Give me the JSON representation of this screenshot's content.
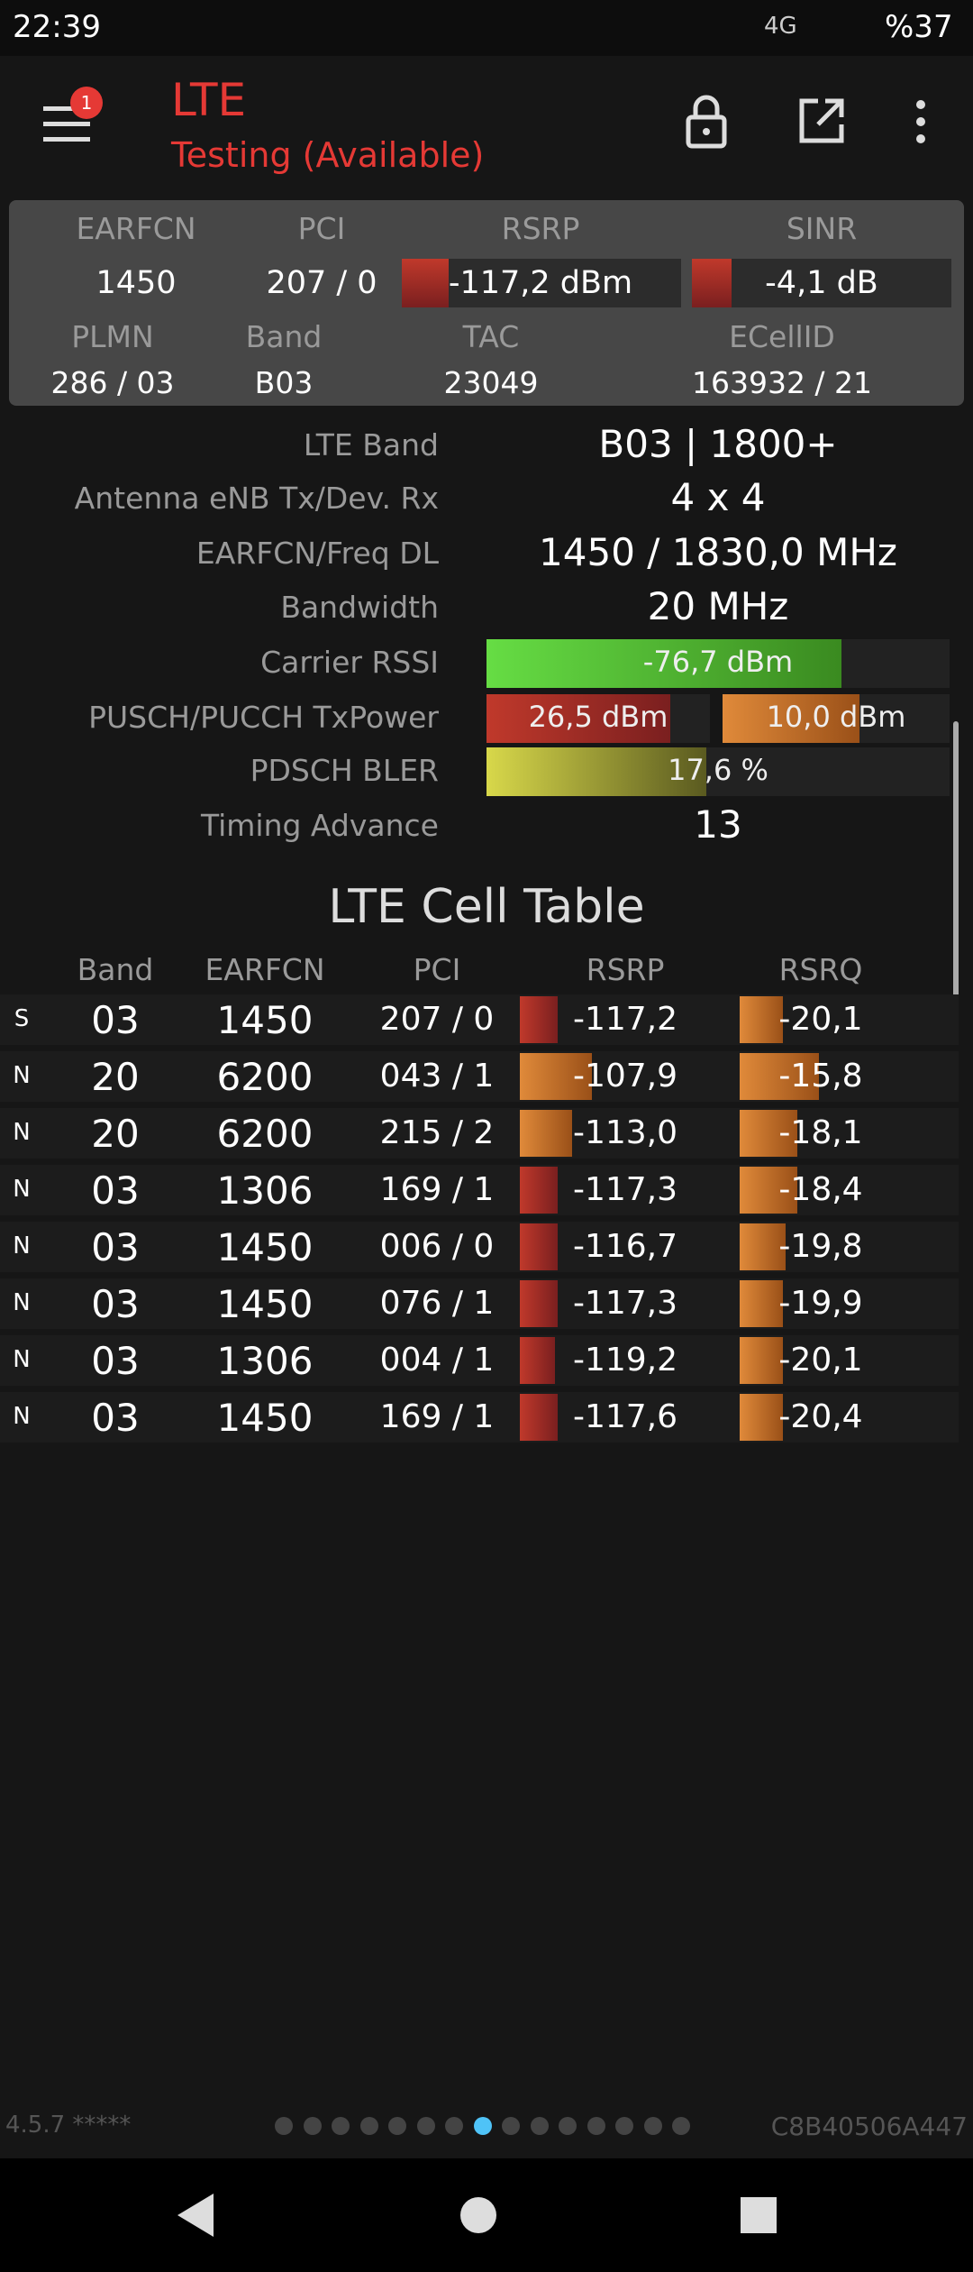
{
  "status_bar": {
    "time": "22:39",
    "network": "4G",
    "battery": "%37"
  },
  "header": {
    "badge": "1",
    "title": "LTE",
    "subtitle": "Testing (Available)"
  },
  "summary": {
    "headers": [
      "EARFCN",
      "PCI",
      "RSRP",
      "SINR"
    ],
    "values": [
      "1450",
      "207 / 0",
      "-117,2 dBm",
      "-4,1 dB"
    ],
    "headers2": [
      "PLMN",
      "Band",
      "TAC",
      "ECellID"
    ],
    "values2": [
      "286 / 03",
      "B03",
      "23049",
      "163932 / 21"
    ]
  },
  "details": [
    {
      "label": "LTE Band",
      "value": "B03 | 1800+"
    },
    {
      "label": "Antenna eNB Tx/Dev. Rx",
      "value": "4 x 4"
    },
    {
      "label": "EARFCN/Freq DL",
      "value": "1450 / 1830,0 MHz"
    },
    {
      "label": "Bandwidth",
      "value": "20 MHz"
    },
    {
      "label": "Carrier RSSI",
      "value": "-76,7 dBm"
    },
    {
      "label": "PUSCH/PUCCH TxPower",
      "value": "26,5 dBm",
      "value2": "10,0 dBm"
    },
    {
      "label": "PDSCH BLER",
      "value": "17,6 %"
    },
    {
      "label": "Timing Advance",
      "value": "13"
    }
  ],
  "cell_table": {
    "title": "LTE Cell Table",
    "columns": [
      "Band",
      "EARFCN",
      "PCI",
      "RSRP",
      "RSRQ"
    ],
    "rows": [
      [
        "S",
        "03",
        "1450",
        "207 / 0",
        "-117,2",
        "-20,1"
      ],
      [
        "N",
        "20",
        "6200",
        "043 / 1",
        "-107,9",
        "-15,8"
      ],
      [
        "N",
        "20",
        "6200",
        "215 / 2",
        "-113,0",
        "-18,1"
      ],
      [
        "N",
        "03",
        "1306",
        "169 / 1",
        "-117,3",
        "-18,4"
      ],
      [
        "N",
        "03",
        "1450",
        "006 / 0",
        "-116,7",
        "-19,8"
      ],
      [
        "N",
        "03",
        "1450",
        "076 / 1",
        "-117,3",
        "-19,9"
      ],
      [
        "N",
        "03",
        "1306",
        "004 / 1",
        "-119,2",
        "-20,1"
      ],
      [
        "N",
        "03",
        "1450",
        "169 / 1",
        "-117,6",
        "-20,4"
      ]
    ]
  },
  "footer": {
    "version": "4.5.7 *****",
    "device_id": "C8B40506A447"
  }
}
